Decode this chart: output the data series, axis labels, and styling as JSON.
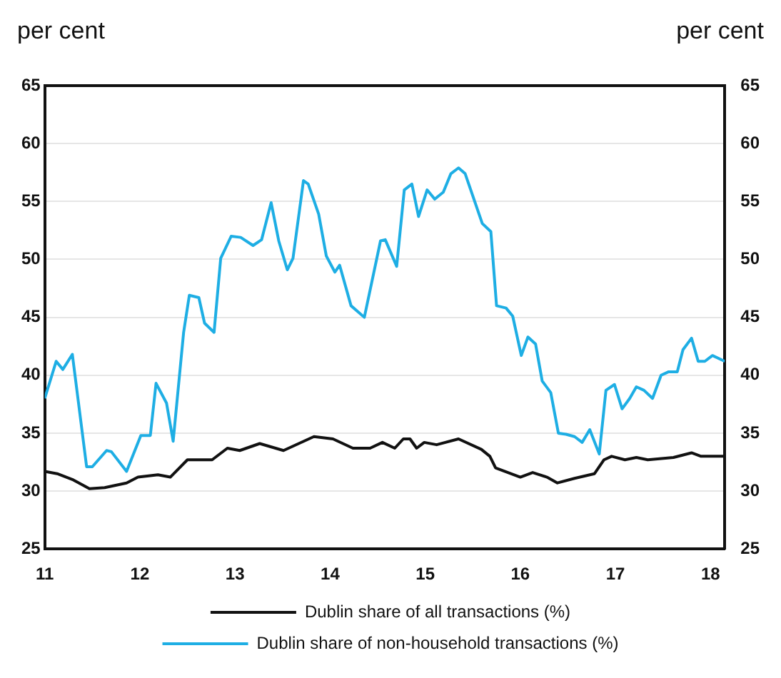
{
  "chart_data": {
    "type": "line",
    "ylabel": "per cent",
    "y2label": "per cent",
    "xlim": [
      11,
      18.15
    ],
    "xticks": [
      11,
      12,
      13,
      14,
      15,
      16,
      17,
      18
    ],
    "ylim": [
      25,
      65
    ],
    "yticks": [
      25,
      30,
      35,
      40,
      45,
      50,
      55,
      60,
      65
    ],
    "y2lim": [
      25,
      65
    ],
    "y2ticks": [
      25,
      30,
      35,
      40,
      45,
      50,
      55,
      60,
      65
    ],
    "grid": "y",
    "legend": "bottom",
    "marker": "none",
    "line_style": "solid",
    "series": [
      {
        "name": "Dublin share of all transactions (%)",
        "color": "#111111",
        "x": [
          11.0,
          11.13,
          11.29,
          11.47,
          11.63,
          11.86,
          11.98,
          12.19,
          12.32,
          12.5,
          12.76,
          12.92,
          13.05,
          13.26,
          13.51,
          13.83,
          14.03,
          14.24,
          14.42,
          14.55,
          14.68,
          14.77,
          14.84,
          14.91,
          14.99,
          15.12,
          15.35,
          15.59,
          15.68,
          15.74,
          16.0,
          16.13,
          16.28,
          16.39,
          16.57,
          16.78,
          16.88,
          16.96,
          17.1,
          17.22,
          17.34,
          17.61,
          17.8,
          17.9,
          18.15
        ],
        "values": [
          31.7,
          31.5,
          31.0,
          30.2,
          30.3,
          30.7,
          31.2,
          31.4,
          31.2,
          32.7,
          32.7,
          33.7,
          33.5,
          34.1,
          33.5,
          34.7,
          34.5,
          33.7,
          33.7,
          34.2,
          33.7,
          34.5,
          34.5,
          33.7,
          34.2,
          34.0,
          34.5,
          33.6,
          33.0,
          32.0,
          31.2,
          31.6,
          31.2,
          30.7,
          31.1,
          31.5,
          32.7,
          33.0,
          32.7,
          32.9,
          32.7,
          32.9,
          33.3,
          33.0,
          33.0
        ]
      },
      {
        "name": "Dublin share of non-household transactions (%)",
        "color": "#1eaee4",
        "x": [
          11.0,
          11.12,
          11.19,
          11.29,
          11.44,
          11.5,
          11.65,
          11.7,
          11.86,
          12.01,
          12.11,
          12.17,
          12.28,
          12.35,
          12.46,
          12.52,
          12.62,
          12.68,
          12.78,
          12.85,
          12.96,
          13.06,
          13.19,
          13.28,
          13.38,
          13.46,
          13.55,
          13.61,
          13.72,
          13.77,
          13.88,
          13.96,
          14.05,
          14.1,
          14.22,
          14.36,
          14.53,
          14.58,
          14.7,
          14.78,
          14.86,
          14.93,
          15.02,
          15.1,
          15.19,
          15.27,
          15.35,
          15.42,
          15.6,
          15.69,
          15.75,
          15.85,
          15.92,
          16.01,
          16.08,
          16.16,
          16.23,
          16.32,
          16.4,
          16.48,
          16.57,
          16.65,
          16.73,
          16.83,
          16.9,
          16.99,
          17.07,
          17.15,
          17.22,
          17.3,
          17.39,
          17.48,
          17.56,
          17.65,
          17.71,
          17.8,
          17.87,
          17.94,
          18.02,
          18.15
        ],
        "values": [
          38.0,
          41.2,
          40.5,
          41.8,
          32.1,
          32.1,
          33.5,
          33.4,
          31.7,
          34.8,
          34.8,
          39.3,
          37.6,
          34.3,
          43.7,
          46.9,
          46.7,
          44.5,
          43.7,
          50.1,
          52.0,
          51.9,
          51.2,
          51.7,
          54.9,
          51.6,
          49.1,
          50.1,
          56.8,
          56.5,
          53.9,
          50.3,
          48.9,
          49.5,
          46.0,
          45.0,
          51.6,
          51.7,
          49.4,
          56.0,
          56.5,
          53.7,
          56.0,
          55.2,
          55.8,
          57.4,
          57.9,
          57.4,
          53.1,
          52.4,
          46.0,
          45.8,
          45.1,
          41.7,
          43.3,
          42.7,
          39.5,
          38.5,
          35.0,
          34.9,
          34.7,
          34.2,
          35.3,
          33.2,
          38.7,
          39.2,
          37.1,
          38.0,
          39.0,
          38.7,
          38.0,
          40.0,
          40.3,
          40.3,
          42.2,
          43.2,
          41.2,
          41.2,
          41.7,
          41.2
        ]
      }
    ]
  }
}
